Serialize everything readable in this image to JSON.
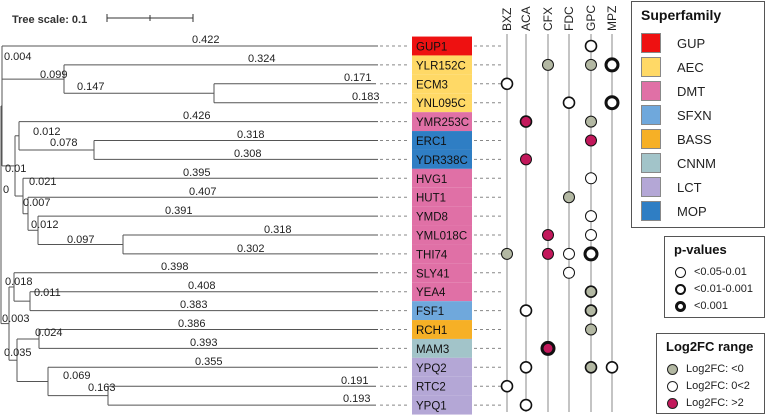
{
  "tree_scale_label": "Tree scale: 0.1",
  "columns": [
    "BXZ",
    "ACA",
    "CFX",
    "FDC",
    "GPC",
    "MPZ"
  ],
  "colors": {
    "GUP": "#ee1111",
    "AEC": "#ffd966",
    "DMT": "#e070a6",
    "SFXN": "#6fa8dc",
    "BASS": "#f6b026",
    "CNNM": "#a2c4c9",
    "LCT": "#b4a7d6",
    "MOP": "#2f7ec4",
    "neg": "#b3b8a3",
    "pos_low": "#ffffff",
    "pos_high": "#c2185b"
  },
  "genes": [
    {
      "name": "GUP1",
      "family": "GUP"
    },
    {
      "name": "YLR152C",
      "family": "AEC"
    },
    {
      "name": "ECM3",
      "family": "AEC"
    },
    {
      "name": "YNL095C",
      "family": "AEC"
    },
    {
      "name": "YMR253C",
      "family": "DMT"
    },
    {
      "name": "ERC1",
      "family": "MOP"
    },
    {
      "name": "YDR338C",
      "family": "MOP"
    },
    {
      "name": "HVG1",
      "family": "DMT"
    },
    {
      "name": "HUT1",
      "family": "DMT"
    },
    {
      "name": "YMD8",
      "family": "DMT"
    },
    {
      "name": "YML018C",
      "family": "DMT"
    },
    {
      "name": "THI74",
      "family": "DMT"
    },
    {
      "name": "SLY41",
      "family": "DMT"
    },
    {
      "name": "YEA4",
      "family": "DMT"
    },
    {
      "name": "FSF1",
      "family": "SFXN"
    },
    {
      "name": "RCH1",
      "family": "BASS"
    },
    {
      "name": "MAM3",
      "family": "CNNM"
    },
    {
      "name": "YPQ2",
      "family": "LCT"
    },
    {
      "name": "RTC2",
      "family": "LCT"
    },
    {
      "name": "YPQ1",
      "family": "LCT"
    }
  ],
  "leaf_branch_lengths": [
    {
      "gene": "GUP1",
      "label": "0.422"
    },
    {
      "gene": "YLR152C",
      "label": "0.324"
    },
    {
      "gene": "ECM3",
      "label": "0.171"
    },
    {
      "gene": "YNL095C",
      "label": "0.183"
    },
    {
      "gene": "YMR253C",
      "label": "0.426"
    },
    {
      "gene": "ERC1",
      "label": "0.318"
    },
    {
      "gene": "YDR338C",
      "label": "0.308"
    },
    {
      "gene": "HVG1",
      "label": "0.395"
    },
    {
      "gene": "HUT1",
      "label": "0.407"
    },
    {
      "gene": "YMD8",
      "label": "0.391"
    },
    {
      "gene": "YML018C",
      "label": "0.318"
    },
    {
      "gene": "THI74",
      "label": "0.302"
    },
    {
      "gene": "SLY41",
      "label": "0.398"
    },
    {
      "gene": "YEA4",
      "label": "0.408"
    },
    {
      "gene": "FSF1",
      "label": "0.383"
    },
    {
      "gene": "RCH1",
      "label": "0.386"
    },
    {
      "gene": "MAM3",
      "label": "0.393"
    },
    {
      "gene": "YPQ2",
      "label": "0.355"
    },
    {
      "gene": "RTC2",
      "label": "0.191"
    },
    {
      "gene": "YPQ1",
      "label": "0.193"
    }
  ],
  "internal_branch_labels": [
    "0.004",
    "0.099",
    "0.147",
    "0.012",
    "0.078",
    "0.01",
    "0",
    "0.021",
    "0.007",
    "0.012",
    "0.097",
    "0.018",
    "0.011",
    "0.003",
    "0.024",
    "0.035",
    "0.069",
    "0.163"
  ],
  "significance_markers": [
    {
      "gene": "GUP1",
      "column": "GPC",
      "fc": "pos_low",
      "p": "mid"
    },
    {
      "gene": "YLR152C",
      "column": "CFX",
      "fc": "neg",
      "p": "low"
    },
    {
      "gene": "YLR152C",
      "column": "GPC",
      "fc": "neg",
      "p": "low"
    },
    {
      "gene": "YLR152C",
      "column": "MPZ",
      "fc": "pos_low",
      "p": "high"
    },
    {
      "gene": "ECM3",
      "column": "BXZ",
      "fc": "pos_low",
      "p": "mid"
    },
    {
      "gene": "YNL095C",
      "column": "FDC",
      "fc": "pos_low",
      "p": "mid"
    },
    {
      "gene": "YNL095C",
      "column": "MPZ",
      "fc": "pos_low",
      "p": "high"
    },
    {
      "gene": "YMR253C",
      "column": "ACA",
      "fc": "pos_high",
      "p": "mid"
    },
    {
      "gene": "YMR253C",
      "column": "GPC",
      "fc": "neg",
      "p": "low"
    },
    {
      "gene": "ERC1",
      "column": "GPC",
      "fc": "pos_high",
      "p": "low"
    },
    {
      "gene": "YDR338C",
      "column": "ACA",
      "fc": "pos_high",
      "p": "low"
    },
    {
      "gene": "HVG1",
      "column": "GPC",
      "fc": "pos_low",
      "p": "low"
    },
    {
      "gene": "HUT1",
      "column": "FDC",
      "fc": "neg",
      "p": "low"
    },
    {
      "gene": "YMD8",
      "column": "GPC",
      "fc": "pos_low",
      "p": "low"
    },
    {
      "gene": "YML018C",
      "column": "CFX",
      "fc": "pos_high",
      "p": "low"
    },
    {
      "gene": "YML018C",
      "column": "GPC",
      "fc": "pos_low",
      "p": "low"
    },
    {
      "gene": "THI74",
      "column": "BXZ",
      "fc": "neg",
      "p": "low"
    },
    {
      "gene": "THI74",
      "column": "CFX",
      "fc": "pos_high",
      "p": "low"
    },
    {
      "gene": "THI74",
      "column": "FDC",
      "fc": "pos_low",
      "p": "low"
    },
    {
      "gene": "THI74",
      "column": "GPC",
      "fc": "pos_low",
      "p": "high"
    },
    {
      "gene": "SLY41",
      "column": "FDC",
      "fc": "pos_low",
      "p": "low"
    },
    {
      "gene": "YEA4",
      "column": "GPC",
      "fc": "neg",
      "p": "mid"
    },
    {
      "gene": "FSF1",
      "column": "ACA",
      "fc": "pos_low",
      "p": "mid"
    },
    {
      "gene": "FSF1",
      "column": "GPC",
      "fc": "neg",
      "p": "mid"
    },
    {
      "gene": "RCH1",
      "column": "GPC",
      "fc": "neg",
      "p": "low"
    },
    {
      "gene": "MAM3",
      "column": "CFX",
      "fc": "pos_high",
      "p": "high"
    },
    {
      "gene": "YPQ2",
      "column": "ACA",
      "fc": "pos_low",
      "p": "mid"
    },
    {
      "gene": "YPQ2",
      "column": "GPC",
      "fc": "neg",
      "p": "mid"
    },
    {
      "gene": "YPQ2",
      "column": "MPZ",
      "fc": "pos_low",
      "p": "mid"
    },
    {
      "gene": "RTC2",
      "column": "BXZ",
      "fc": "pos_low",
      "p": "mid"
    },
    {
      "gene": "YPQ1",
      "column": "ACA",
      "fc": "pos_low",
      "p": "mid"
    }
  ],
  "legend_superfamily": {
    "title": "Superfamily",
    "items": [
      {
        "label": "GUP",
        "color": "#ee1111"
      },
      {
        "label": "AEC",
        "color": "#ffd966"
      },
      {
        "label": "DMT",
        "color": "#e070a6"
      },
      {
        "label": "SFXN",
        "color": "#6fa8dc"
      },
      {
        "label": "BASS",
        "color": "#f6b026"
      },
      {
        "label": "CNNM",
        "color": "#a2c4c9"
      },
      {
        "label": "LCT",
        "color": "#b4a7d6"
      },
      {
        "label": "MOP",
        "color": "#2f7ec4"
      }
    ]
  },
  "legend_pvalues": {
    "title": "p-values",
    "items": [
      {
        "label": "<0.05-0.01",
        "weight": "low"
      },
      {
        "label": "<0.01-0.001",
        "weight": "mid"
      },
      {
        "label": "<0.001",
        "weight": "high"
      }
    ]
  },
  "legend_log2fc": {
    "title": "Log2FC range",
    "items": [
      {
        "label": "Log2FC: <0",
        "color": "#b3b8a3"
      },
      {
        "label": "Log2FC: 0<2",
        "color": "#ffffff"
      },
      {
        "label": "Log2FC: >2",
        "color": "#c2185b"
      }
    ]
  }
}
